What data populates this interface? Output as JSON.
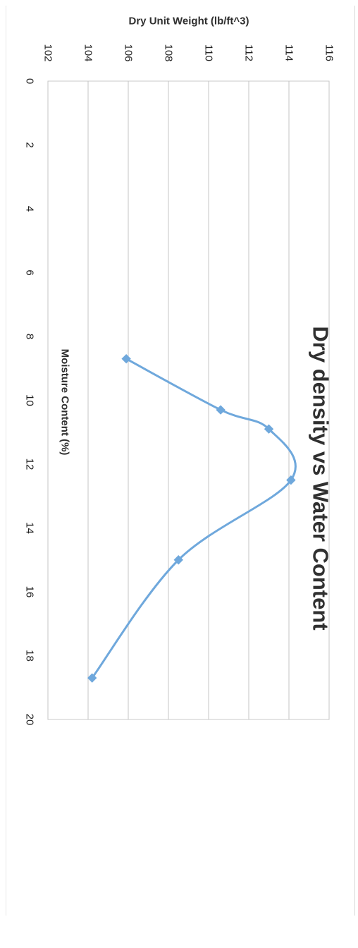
{
  "chart_data": {
    "type": "line",
    "title": "Dry density vs Water Content",
    "xlabel": "Moisture Content (%)",
    "ylabel": "Dry Unit Weight (lb/ft^3)",
    "xlim": [
      0,
      20
    ],
    "ylim": [
      102,
      116
    ],
    "x_ticks": [
      "0",
      "2",
      "4",
      "6",
      "8",
      "10",
      "12",
      "14",
      "16",
      "18",
      "20"
    ],
    "y_ticks": [
      "102",
      "104",
      "106",
      "108",
      "110",
      "112",
      "114",
      "116"
    ],
    "grid": "y-major",
    "series": [
      {
        "color": "#6fa8dc",
        "marker": "diamond",
        "smooth": true,
        "points": [
          {
            "x": 8.7,
            "y": 105.9
          },
          {
            "x": 10.3,
            "y": 110.6
          },
          {
            "x": 10.9,
            "y": 113.0
          },
          {
            "x": 12.5,
            "y": 114.1
          },
          {
            "x": 15.0,
            "y": 108.5
          },
          {
            "x": 18.7,
            "y": 104.2
          }
        ]
      }
    ]
  }
}
